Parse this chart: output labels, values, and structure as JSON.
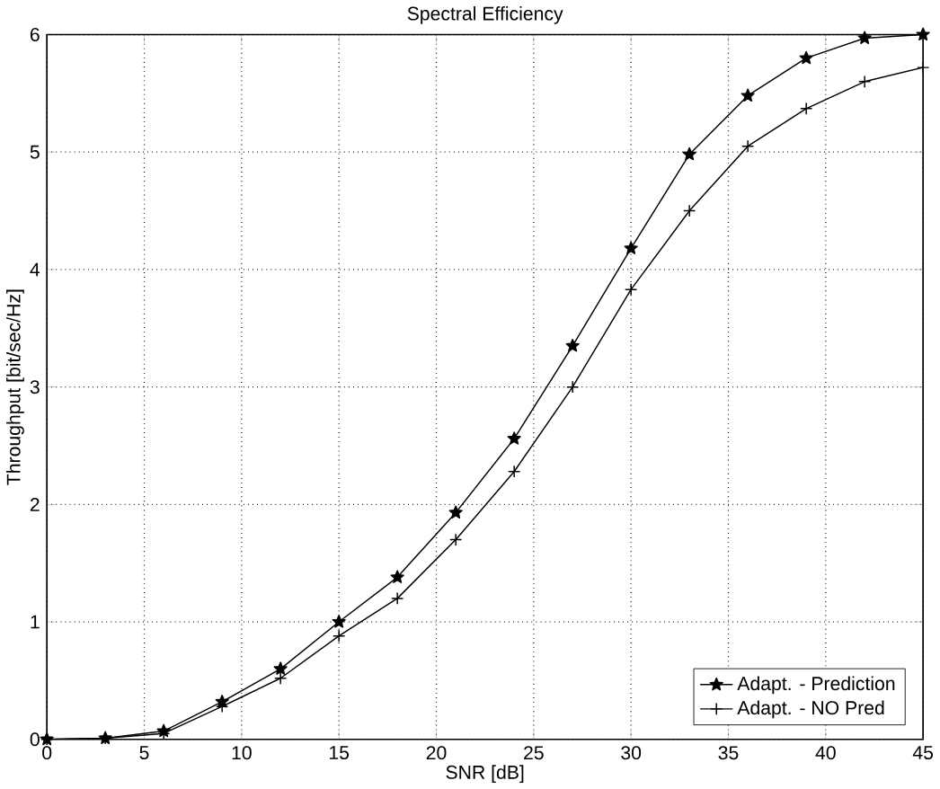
{
  "chart_data": {
    "type": "line",
    "title": "Spectral Efficiency",
    "xlabel": "SNR  [dB]",
    "ylabel": "Throughput  [bit/sec/Hz]",
    "x": [
      0,
      3,
      6,
      9,
      12,
      15,
      18,
      21,
      24,
      27,
      30,
      33,
      36,
      39,
      42,
      45
    ],
    "series": [
      {
        "name": "Adapt. - Prediction",
        "color": "#000000",
        "marker": "star",
        "values": [
          0,
          0.01,
          0.07,
          0.32,
          0.6,
          1.0,
          1.38,
          1.93,
          2.56,
          3.35,
          4.18,
          4.98,
          5.48,
          5.8,
          5.97,
          6.0
        ]
      },
      {
        "name": "Adapt. - NO Pred",
        "color": "#000000",
        "marker": "cross",
        "values": [
          0,
          0.01,
          0.05,
          0.28,
          0.52,
          0.88,
          1.2,
          1.7,
          2.28,
          3.0,
          3.83,
          4.5,
          5.05,
          5.37,
          5.6,
          5.72
        ]
      }
    ],
    "xlim": [
      0,
      45
    ],
    "xticks": [
      0,
      5,
      10,
      15,
      20,
      25,
      30,
      35,
      40,
      45
    ],
    "ylim": [
      0,
      6
    ],
    "yticks": [
      0,
      1,
      2,
      3,
      4,
      5,
      6
    ],
    "grid": true,
    "legend": "bottom right",
    "line_style": "solid"
  }
}
